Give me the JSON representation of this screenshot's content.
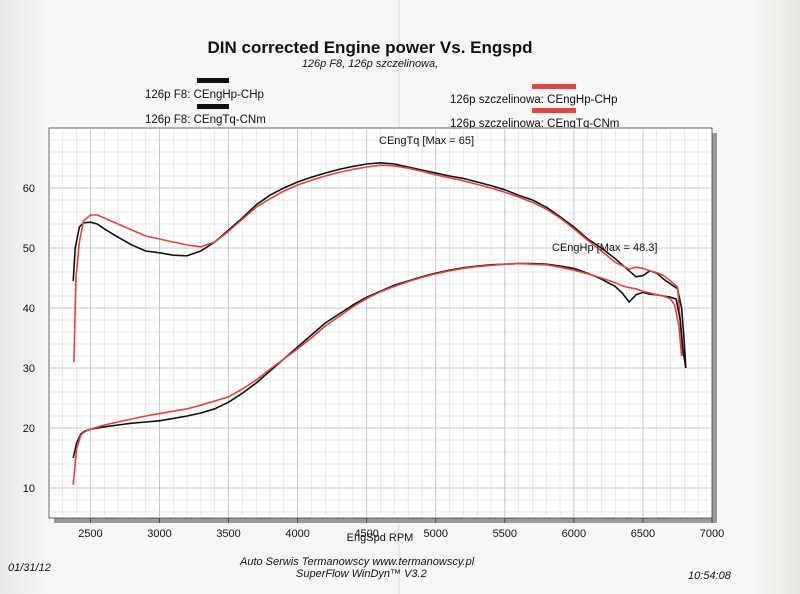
{
  "chart_data": {
    "type": "line",
    "title": "DIN corrected Engine power Vs. Engspd",
    "subtitle": "126p F8, 126p szczelinowa,",
    "xlabel": "EngSpd RPM",
    "ylabel": "",
    "xlim": [
      2200,
      7000
    ],
    "ylim": [
      5,
      70
    ],
    "x_ticks": [
      "2500",
      "3000",
      "3500",
      "4000",
      "4500",
      "5000",
      "5500",
      "6000",
      "6500",
      "7000"
    ],
    "y_ticks": [
      "10",
      "20",
      "30",
      "40",
      "50",
      "60"
    ],
    "grid": true,
    "annotations": [
      "CEngTq [Max = 65]",
      "CEngHp [Max = 48.3]"
    ],
    "legend": [
      {
        "label": "126p F8: CEngHp-CHp",
        "color": "#111111"
      },
      {
        "label": "126p F8: CEngTq-CNm",
        "color": "#111111"
      },
      {
        "label": "126p szczelinowa: CEngHp-CHp",
        "color": "#e0463f"
      },
      {
        "label": "126p szczelinowa: CEngTq-CNm",
        "color": "#e0463f"
      }
    ],
    "series": [
      {
        "name": "126p F8: CEngTq-CNm",
        "color": "#111111",
        "x": [
          2375,
          2390,
          2420,
          2450,
          2500,
          2550,
          2600,
          2700,
          2800,
          2900,
          3000,
          3100,
          3200,
          3300,
          3400,
          3500,
          3600,
          3700,
          3800,
          3900,
          4000,
          4100,
          4200,
          4300,
          4400,
          4500,
          4600,
          4700,
          4800,
          4900,
          5000,
          5100,
          5200,
          5300,
          5400,
          5500,
          5600,
          5700,
          5800,
          5900,
          6000,
          6100,
          6200,
          6300,
          6400,
          6450,
          6500,
          6550,
          6600,
          6650,
          6700,
          6750,
          6780,
          6800,
          6810
        ],
        "y": [
          44.5,
          50,
          53.5,
          54.2,
          54.3,
          54,
          53.2,
          51.8,
          50.5,
          49.5,
          49.2,
          48.8,
          48.7,
          49.5,
          51,
          53,
          55,
          57.2,
          58.8,
          60,
          61,
          61.8,
          62.5,
          63.1,
          63.6,
          64,
          64.2,
          64,
          63.5,
          63,
          62.5,
          62,
          61.6,
          61,
          60.4,
          59.7,
          58.8,
          58,
          56.8,
          55.2,
          53.5,
          51.5,
          50,
          48.2,
          46.2,
          45.2,
          45.4,
          46.2,
          45.8,
          44.8,
          44,
          43.2,
          40,
          34,
          30
        ]
      },
      {
        "name": "126p szczelinowa: CEngTq-CNm",
        "color": "#e0463f",
        "x": [
          2380,
          2395,
          2420,
          2450,
          2500,
          2550,
          2600,
          2700,
          2800,
          2900,
          3000,
          3100,
          3200,
          3300,
          3400,
          3500,
          3600,
          3700,
          3800,
          3900,
          4000,
          4100,
          4200,
          4300,
          4400,
          4500,
          4600,
          4700,
          4800,
          4900,
          5000,
          5100,
          5200,
          5300,
          5400,
          5500,
          5600,
          5700,
          5800,
          5900,
          6000,
          6100,
          6200,
          6300,
          6400,
          6450,
          6500,
          6550,
          6600,
          6650,
          6700,
          6750,
          6770,
          6790
        ],
        "y": [
          31,
          45,
          51,
          54.5,
          55.5,
          55.5,
          55,
          54,
          53,
          52,
          51.5,
          51,
          50.5,
          50.2,
          51,
          52.8,
          54.8,
          56.8,
          58.2,
          59.5,
          60.5,
          61.3,
          62,
          62.6,
          63.1,
          63.5,
          63.8,
          63.7,
          63.3,
          62.8,
          62.2,
          61.7,
          61.2,
          60.6,
          60,
          59.3,
          58.5,
          57.6,
          56.5,
          55,
          53.2,
          51.3,
          49.5,
          47.6,
          46.5,
          46.8,
          46.6,
          46.2,
          45.9,
          45.4,
          44.5,
          43.5,
          38,
          32
        ]
      },
      {
        "name": "126p F8: CEngHp-CHp",
        "color": "#111111",
        "x": [
          2375,
          2400,
          2430,
          2460,
          2500,
          2600,
          2700,
          2800,
          2900,
          3000,
          3100,
          3200,
          3300,
          3400,
          3500,
          3600,
          3700,
          3800,
          3900,
          4000,
          4100,
          4200,
          4300,
          4400,
          4500,
          4600,
          4700,
          4800,
          4900,
          5000,
          5100,
          5200,
          5300,
          5400,
          5500,
          5600,
          5700,
          5800,
          5900,
          6000,
          6100,
          6200,
          6300,
          6350,
          6400,
          6450,
          6500,
          6550,
          6600,
          6650,
          6700,
          6740,
          6770,
          6790,
          6810
        ],
        "y": [
          15,
          17.5,
          19,
          19.5,
          19.8,
          20.2,
          20.5,
          20.8,
          21,
          21.2,
          21.6,
          22,
          22.5,
          23.2,
          24.3,
          25.8,
          27.5,
          29.5,
          31.5,
          33.5,
          35.5,
          37.5,
          39,
          40.5,
          41.8,
          42.8,
          43.8,
          44.5,
          45.2,
          45.8,
          46.3,
          46.7,
          47,
          47.2,
          47.3,
          47.4,
          47.4,
          47.3,
          47,
          46.6,
          45.8,
          44.8,
          43.6,
          42.5,
          41,
          42.2,
          42.6,
          42.3,
          42.2,
          42.0,
          41.8,
          41.5,
          38,
          33,
          30
        ]
      },
      {
        "name": "126p szczelinowa: CEngHp-CHp",
        "color": "#e0463f",
        "x": [
          2375,
          2400,
          2430,
          2460,
          2500,
          2600,
          2700,
          2800,
          2900,
          3000,
          3100,
          3200,
          3300,
          3400,
          3500,
          3600,
          3700,
          3800,
          3900,
          4000,
          4100,
          4200,
          4300,
          4400,
          4500,
          4600,
          4700,
          4800,
          4900,
          5000,
          5100,
          5200,
          5300,
          5400,
          5500,
          5600,
          5700,
          5800,
          5900,
          6000,
          6100,
          6200,
          6300,
          6350,
          6400,
          6450,
          6500,
          6550,
          6600,
          6650,
          6700,
          6730,
          6760,
          6780
        ],
        "y": [
          10.5,
          16.5,
          18.8,
          19.4,
          19.8,
          20.5,
          21,
          21.5,
          22,
          22.4,
          22.8,
          23.2,
          23.8,
          24.5,
          25.2,
          26.5,
          28,
          29.8,
          31.5,
          33.2,
          35,
          37,
          38.6,
          40.2,
          41.6,
          42.7,
          43.6,
          44.4,
          45.1,
          45.7,
          46.2,
          46.6,
          46.9,
          47.1,
          47.3,
          47.4,
          47.3,
          47.2,
          46.8,
          46.3,
          45.7,
          45,
          44.2,
          43.7,
          43.4,
          43.2,
          42.8,
          42.5,
          42.2,
          42.0,
          41.5,
          40.5,
          37,
          32
        ]
      }
    ]
  },
  "footer": {
    "date": "01/31/12",
    "company": "Auto Serwis Termanowscy   www.termanowscy.pl",
    "software": "SuperFlow WinDyn™ V3.2",
    "time": "10:54:08"
  }
}
